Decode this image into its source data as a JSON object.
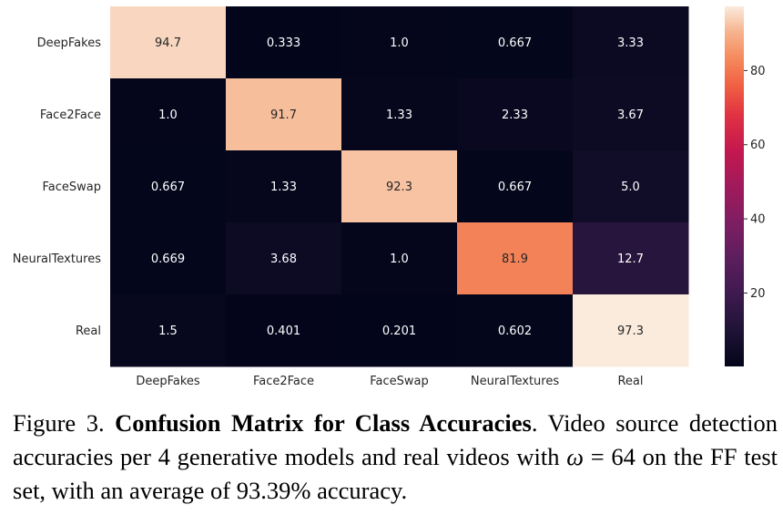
{
  "chart_data": {
    "type": "heatmap",
    "title": "",
    "xlabel": "",
    "ylabel": "",
    "row_labels": [
      "DeepFakes",
      "Face2Face",
      "FaceSwap",
      "NeuralTextures",
      "Real"
    ],
    "col_labels": [
      "DeepFakes",
      "Face2Face",
      "FaceSwap",
      "NeuralTextures",
      "Real"
    ],
    "values": [
      [
        94.7,
        0.333,
        1.0,
        0.667,
        3.33
      ],
      [
        1.0,
        91.7,
        1.33,
        2.33,
        3.67
      ],
      [
        0.667,
        1.33,
        92.3,
        0.667,
        5.0
      ],
      [
        0.669,
        3.68,
        1.0,
        81.9,
        12.7
      ],
      [
        1.5,
        0.401,
        0.201,
        0.602,
        97.3
      ]
    ],
    "value_labels": [
      [
        "94.7",
        "0.333",
        "1.0",
        "0.667",
        "3.33"
      ],
      [
        "1.0",
        "91.7",
        "1.33",
        "2.33",
        "3.67"
      ],
      [
        "0.667",
        "1.33",
        "92.3",
        "0.667",
        "5.0"
      ],
      [
        "0.669",
        "3.68",
        "1.0",
        "81.9",
        "12.7"
      ],
      [
        "1.5",
        "0.401",
        "0.201",
        "0.602",
        "97.3"
      ]
    ],
    "colorbar": {
      "range": [
        0.201,
        97.3
      ],
      "ticks": [
        20,
        40,
        60,
        80
      ],
      "tick_labels": [
        "20",
        "40",
        "60",
        "80"
      ],
      "colormap": "rocket"
    },
    "colors": {
      "text_dark_cell": "#ffffff",
      "text_light_cell": "#262626"
    }
  },
  "caption": {
    "prefix": "Figure 3.",
    "bold": "Confusion Matrix for Class Accuracies",
    "text1": ". Video source detection accuracies per 4 generative models and real videos with",
    "omega": "ω",
    "text2": "= 64 on the FF test set, with an average of 93.39% accuracy."
  }
}
